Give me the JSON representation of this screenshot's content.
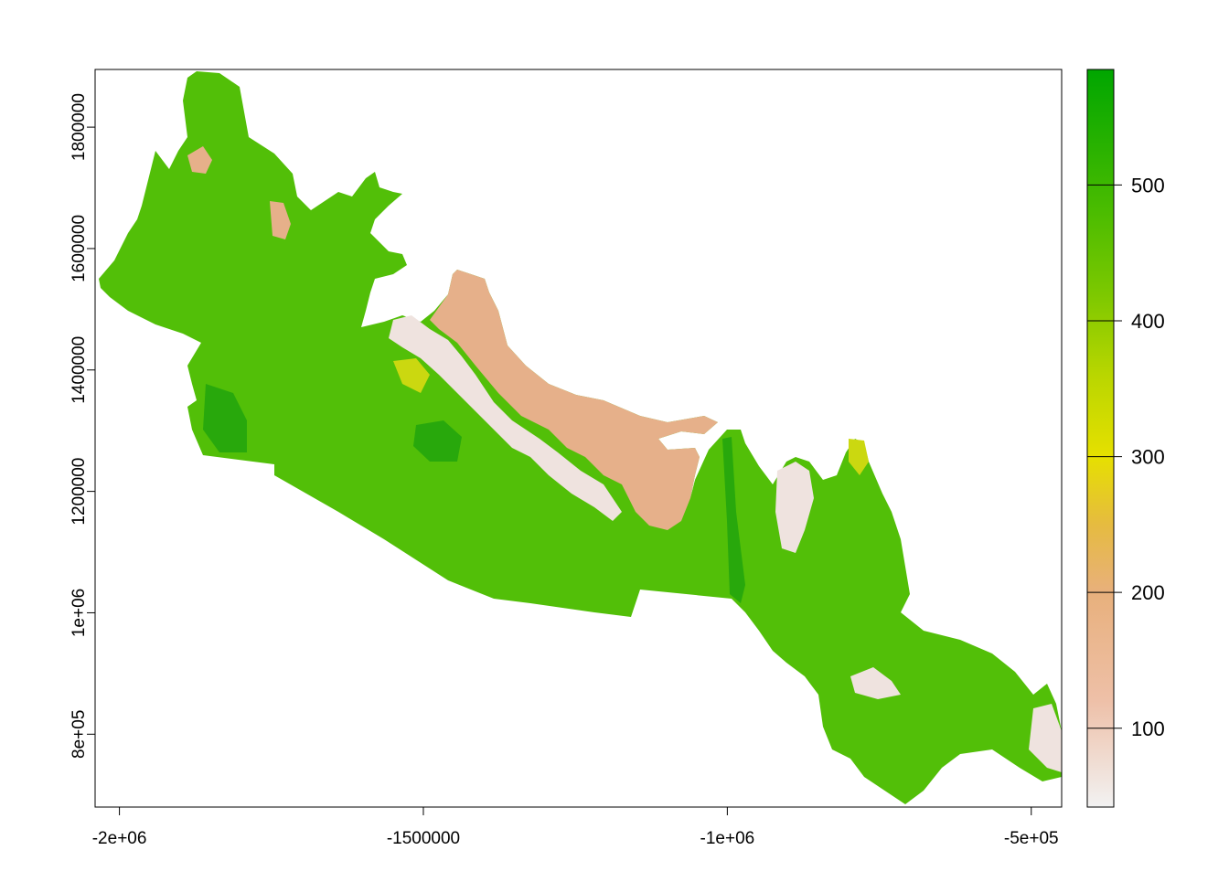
{
  "map": {
    "x_axis": {
      "range": [
        -2040000,
        -450000
      ],
      "ticks": [
        {
          "value": -2000000,
          "label": "-2e+06"
        },
        {
          "value": -1500000,
          "label": "-1500000"
        },
        {
          "value": -1000000,
          "label": "-1e+06"
        },
        {
          "value": -500000,
          "label": "-5e+05"
        }
      ]
    },
    "y_axis": {
      "range": [
        680000,
        1895000
      ],
      "ticks": [
        {
          "value": 800000,
          "label": "8e+05"
        },
        {
          "value": 1000000,
          "label": "1e+06"
        },
        {
          "value": 1200000,
          "label": "1200000"
        },
        {
          "value": 1400000,
          "label": "1400000"
        },
        {
          "value": 1600000,
          "label": "1600000"
        },
        {
          "value": 1800000,
          "label": "1800000"
        }
      ]
    },
    "legend": {
      "range": [
        42,
        585
      ],
      "ticks": [
        {
          "value": 100,
          "label": "100"
        },
        {
          "value": 200,
          "label": "200"
        },
        {
          "value": 300,
          "label": "300"
        },
        {
          "value": 400,
          "label": "400"
        },
        {
          "value": 500,
          "label": "500"
        }
      ],
      "gradient": [
        {
          "v": 42,
          "color": "#f2f2f2"
        },
        {
          "v": 120,
          "color": "#eec0a8"
        },
        {
          "v": 200,
          "color": "#e8b07c"
        },
        {
          "v": 250,
          "color": "#e6bb40"
        },
        {
          "v": 300,
          "color": "#e6e000"
        },
        {
          "v": 360,
          "color": "#b9d600"
        },
        {
          "v": 420,
          "color": "#7cc800"
        },
        {
          "v": 480,
          "color": "#4bbc00"
        },
        {
          "v": 585,
          "color": "#00a600"
        }
      ]
    },
    "colors": {
      "main_green": "#52bf08",
      "dark_green": "#28a80c",
      "tan": "#e6b08a",
      "pale": "#efe3df",
      "yellow": "#cbd810"
    }
  }
}
